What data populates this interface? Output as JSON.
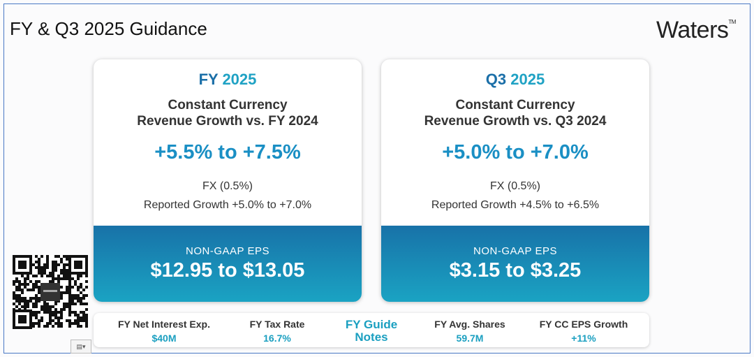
{
  "header": {
    "title": "FY & Q3 2025 Guidance",
    "logo": "Waters",
    "logo_mark": "TM"
  },
  "cards": [
    {
      "period_prefix": "FY",
      "period_year": "2025",
      "subtitle_lines": [
        "Constant Currency",
        "Revenue Growth vs. FY 2024"
      ],
      "range": "+5.5% to +7.5%",
      "fx": "FX (0.5%)",
      "reported": "Reported Growth +5.0% to +7.0%",
      "eps_label": "NON-GAAP EPS",
      "eps_value": "$12.95 to $13.05"
    },
    {
      "period_prefix": "Q3",
      "period_year": "2025",
      "subtitle_lines": [
        "Constant Currency",
        "Revenue Growth vs. Q3 2024"
      ],
      "range": "+5.0% to +7.0%",
      "fx": "FX (0.5%)",
      "reported": "Reported Growth +4.5% to +6.5%",
      "eps_label": "NON-GAAP EPS",
      "eps_value": "$3.15 to $3.25"
    }
  ],
  "notes": {
    "title_lines": [
      "FY Guide",
      "Notes"
    ],
    "items": [
      {
        "label": "FY Net Interest Exp.",
        "value": "$40M"
      },
      {
        "label": "FY Tax Rate",
        "value": "16.7%"
      },
      {
        "label": "FY Avg. Shares",
        "value": "59.7M"
      },
      {
        "label": "FY CC EPS Growth",
        "value": "+11%"
      }
    ]
  }
}
